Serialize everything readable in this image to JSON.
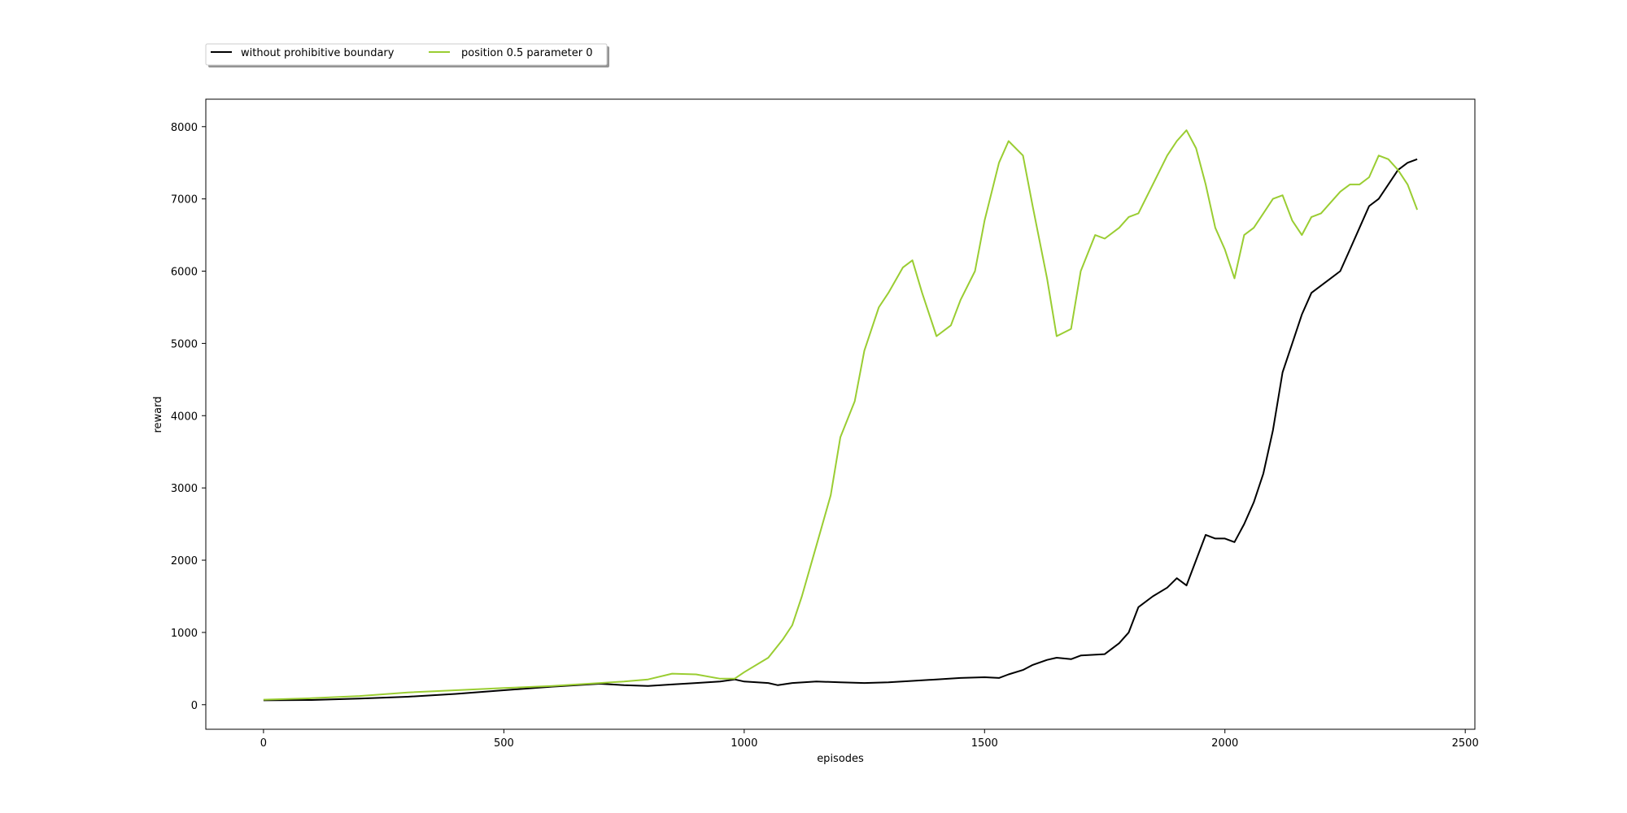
{
  "chart_data": {
    "type": "line",
    "title": "",
    "xlabel": "episodes",
    "ylabel": "reward",
    "xlim": [
      -120,
      2520
    ],
    "ylim": [
      -340,
      8380
    ],
    "xticks": [
      0,
      500,
      1000,
      1500,
      2000,
      2500
    ],
    "yticks": [
      0,
      1000,
      2000,
      3000,
      4000,
      5000,
      6000,
      7000,
      8000
    ],
    "grid": false,
    "legend_position": "above plot, top-left",
    "series": [
      {
        "name": "without prohibitive boundary",
        "color": "#000000",
        "x": [
          0,
          100,
          200,
          300,
          400,
          500,
          600,
          700,
          750,
          800,
          850,
          900,
          950,
          980,
          1000,
          1050,
          1070,
          1100,
          1150,
          1200,
          1250,
          1300,
          1350,
          1400,
          1450,
          1500,
          1530,
          1550,
          1580,
          1600,
          1630,
          1650,
          1680,
          1700,
          1750,
          1780,
          1800,
          1820,
          1850,
          1880,
          1900,
          1920,
          1940,
          1960,
          1980,
          2000,
          2020,
          2040,
          2060,
          2080,
          2100,
          2120,
          2140,
          2160,
          2180,
          2200,
          2220,
          2240,
          2260,
          2280,
          2300,
          2320,
          2340,
          2360,
          2380,
          2400
        ],
        "y": [
          60,
          65,
          85,
          110,
          150,
          200,
          250,
          290,
          270,
          260,
          280,
          300,
          320,
          350,
          320,
          300,
          270,
          300,
          320,
          310,
          300,
          310,
          330,
          350,
          370,
          380,
          370,
          420,
          480,
          550,
          620,
          650,
          630,
          680,
          700,
          850,
          1000,
          1350,
          1500,
          1620,
          1750,
          1650,
          2000,
          2350,
          2300,
          2300,
          2250,
          2500,
          2800,
          3200,
          3800,
          4600,
          5000,
          5400,
          5700,
          5800,
          5900,
          6000,
          6300,
          6600,
          6900,
          7000,
          7200,
          7400,
          7500,
          7550
        ]
      },
      {
        "name": "position 0.5 parameter 0",
        "color": "#9acd32",
        "x": [
          0,
          100,
          200,
          300,
          400,
          500,
          600,
          700,
          750,
          800,
          850,
          900,
          950,
          980,
          1000,
          1050,
          1080,
          1100,
          1120,
          1150,
          1180,
          1200,
          1230,
          1250,
          1280,
          1300,
          1330,
          1350,
          1370,
          1400,
          1430,
          1450,
          1480,
          1500,
          1530,
          1550,
          1580,
          1600,
          1630,
          1650,
          1680,
          1700,
          1730,
          1750,
          1780,
          1800,
          1820,
          1850,
          1880,
          1900,
          1920,
          1940,
          1960,
          1980,
          2000,
          2020,
          2040,
          2060,
          2080,
          2100,
          2120,
          2140,
          2160,
          2180,
          2200,
          2220,
          2240,
          2260,
          2280,
          2300,
          2320,
          2340,
          2360,
          2380,
          2400
        ],
        "y": [
          70,
          90,
          120,
          170,
          200,
          230,
          260,
          300,
          320,
          350,
          430,
          420,
          360,
          360,
          450,
          650,
          900,
          1100,
          1500,
          2200,
          2900,
          3700,
          4200,
          4900,
          5500,
          5700,
          6050,
          6150,
          5700,
          5100,
          5250,
          5600,
          6000,
          6700,
          7500,
          7800,
          7600,
          6900,
          5900,
          5100,
          5200,
          6000,
          6500,
          6450,
          6600,
          6750,
          6800,
          7200,
          7600,
          7800,
          7950,
          7700,
          7200,
          6600,
          6300,
          5900,
          6500,
          6600,
          6800,
          7000,
          7050,
          6700,
          6500,
          6750,
          6800,
          6950,
          7100,
          7200,
          7200,
          7300,
          7600,
          7550,
          7400,
          7200,
          6850
        ]
      }
    ]
  }
}
